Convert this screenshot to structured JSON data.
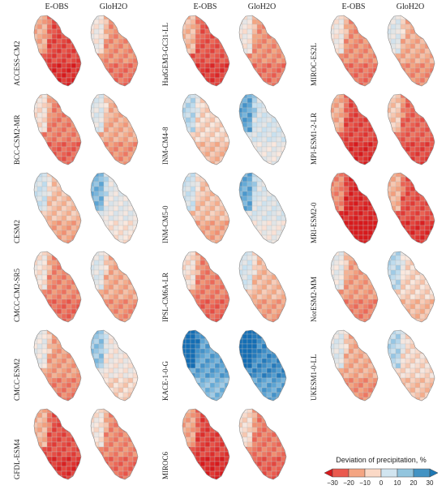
{
  "columns": [
    {
      "titles": [
        "E-OBS",
        "GloH2O"
      ]
    },
    {
      "titles": [
        "E-OBS",
        "GloH2O"
      ]
    },
    {
      "titles": [
        "E-OBS",
        "GloH2O"
      ]
    }
  ],
  "models": [
    {
      "name": "ACCESS-CM2",
      "col": 0,
      "row": 0,
      "eobs": -22,
      "gloh2o": -12
    },
    {
      "name": "BCC-CSM2-MR",
      "col": 0,
      "row": 1,
      "eobs": -16,
      "gloh2o": -10
    },
    {
      "name": "CESM2",
      "col": 0,
      "row": 2,
      "eobs": -6,
      "gloh2o": 4
    },
    {
      "name": "CMCC-CM2-SR5",
      "col": 0,
      "row": 3,
      "eobs": -13,
      "gloh2o": -8
    },
    {
      "name": "CMCC-ESM2",
      "col": 0,
      "row": 4,
      "eobs": -12,
      "gloh2o": 0
    },
    {
      "name": "GFDL-ESM4",
      "col": 0,
      "row": 5,
      "eobs": -22,
      "gloh2o": -14
    },
    {
      "name": "HadGEM3-GC31-LL",
      "col": 1,
      "row": 0,
      "eobs": -20,
      "gloh2o": -12
    },
    {
      "name": "INM-CM4-8",
      "col": 1,
      "row": 1,
      "eobs": -4,
      "gloh2o": 6
    },
    {
      "name": "INM-CM5-0",
      "col": 1,
      "row": 2,
      "eobs": -6,
      "gloh2o": 6
    },
    {
      "name": "IPSL-CM6A-LR",
      "col": 1,
      "row": 3,
      "eobs": -14,
      "gloh2o": -6
    },
    {
      "name": "KACE-1-0-G",
      "col": 1,
      "row": 4,
      "eobs": 20,
      "gloh2o": 24
    },
    {
      "name": "MIROC6",
      "col": 1,
      "row": 5,
      "eobs": -24,
      "gloh2o": -16
    },
    {
      "name": "MIROC-ES2L",
      "col": 2,
      "row": 0,
      "eobs": -12,
      "gloh2o": -8
    },
    {
      "name": "MPI-ESM1-2-LR",
      "col": 2,
      "row": 1,
      "eobs": -24,
      "gloh2o": -20
    },
    {
      "name": "MRI-ESM2-0",
      "col": 2,
      "row": 2,
      "eobs": -28,
      "gloh2o": -22
    },
    {
      "name": "NorESM2-MM",
      "col": 2,
      "row": 3,
      "eobs": -10,
      "gloh2o": -2
    },
    {
      "name": "UKESM1-0-LL",
      "col": 2,
      "row": 4,
      "eobs": -10,
      "gloh2o": -3
    }
  ],
  "legend": {
    "title": "Deviation of precipitation, %",
    "ticks": [
      "−30",
      "−20",
      "−10",
      "0",
      "10",
      "20",
      "30"
    ],
    "colors": [
      "#d7191c",
      "#ea5a4e",
      "#f4a582",
      "#fbd9c6",
      "#d1e5f0",
      "#92c5de",
      "#4393c3",
      "#1f78b4"
    ]
  }
}
